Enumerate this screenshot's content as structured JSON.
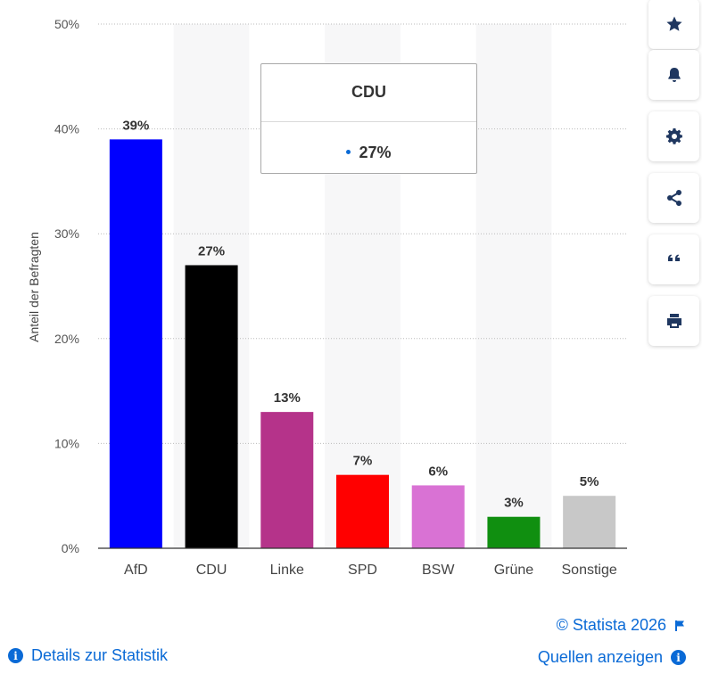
{
  "chart_data": {
    "type": "bar",
    "categories": [
      "AfD",
      "CDU",
      "Linke",
      "SPD",
      "BSW",
      "Grüne",
      "Sonstige"
    ],
    "values": [
      39,
      27,
      13,
      7,
      6,
      3,
      5
    ],
    "value_labels": [
      "39%",
      "27%",
      "13%",
      "7%",
      "6%",
      "3%",
      "5%"
    ],
    "colors": [
      "#0000ff",
      "#000000",
      "#b5338a",
      "#ff0000",
      "#d972d4",
      "#108f10",
      "#c8c8c8"
    ],
    "ylabel": "Anteil der Befragten",
    "yticks": [
      "0%",
      "10%",
      "20%",
      "30%",
      "40%",
      "50%"
    ],
    "ylim": [
      0,
      50
    ],
    "grid": true,
    "tooltip": {
      "title": "CDU",
      "value": "27%"
    }
  },
  "toolbar": {
    "icons": [
      "star-icon",
      "bell-icon",
      "gear-icon",
      "share-icon",
      "quote-icon",
      "print-icon"
    ]
  },
  "footer": {
    "credit": "© Statista 2026",
    "details_label": "Details zur Statistik",
    "sources_label": "Quellen anzeigen",
    "link_color": "#0a6ad6"
  }
}
